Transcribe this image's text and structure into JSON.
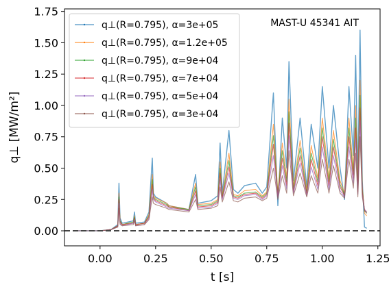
{
  "chart_data": {
    "type": "line",
    "annotation": "MAST-U 45341 AIT",
    "xlabel": "t [s]",
    "ylabel": "q⊥ [MW/m²]",
    "xlim": [
      -0.16,
      1.26
    ],
    "ylim": [
      -0.12,
      1.77
    ],
    "xticks": [
      0.0,
      0.25,
      0.5,
      0.75,
      1.0,
      1.25
    ],
    "xtick_labels": [
      "0.00",
      "0.25",
      "0.50",
      "0.75",
      "1.00",
      "1.25"
    ],
    "yticks": [
      0.0,
      0.25,
      0.5,
      0.75,
      1.0,
      1.25,
      1.5,
      1.75
    ],
    "ytick_labels": [
      "0.00",
      "0.25",
      "0.50",
      "0.75",
      "1.00",
      "1.25",
      "1.50",
      "1.75"
    ],
    "reference_line": {
      "y": 0.0,
      "style": "dashed",
      "color": "#444444"
    },
    "legend_position": "upper-left",
    "grid": false,
    "series": [
      {
        "name": "q⊥(R=0.795), α=3e+05",
        "color": "#1f77b4",
        "x": [
          -0.1,
          0.0,
          0.05,
          0.08,
          0.085,
          0.09,
          0.1,
          0.15,
          0.155,
          0.16,
          0.2,
          0.22,
          0.235,
          0.24,
          0.25,
          0.3,
          0.31,
          0.4,
          0.43,
          0.44,
          0.5,
          0.53,
          0.54,
          0.55,
          0.58,
          0.6,
          0.62,
          0.65,
          0.7,
          0.73,
          0.75,
          0.78,
          0.8,
          0.82,
          0.84,
          0.85,
          0.87,
          0.9,
          0.93,
          0.95,
          0.98,
          1.0,
          1.03,
          1.05,
          1.08,
          1.1,
          1.12,
          1.14,
          1.15,
          1.16,
          1.17,
          1.18,
          1.19,
          1.2
        ],
        "y": [
          0.0,
          0.0,
          0.01,
          0.05,
          0.38,
          0.1,
          0.06,
          0.08,
          0.15,
          0.06,
          0.07,
          0.15,
          0.58,
          0.3,
          0.27,
          0.22,
          0.2,
          0.17,
          0.45,
          0.22,
          0.24,
          0.28,
          0.7,
          0.3,
          0.8,
          0.33,
          0.3,
          0.36,
          0.38,
          0.3,
          0.35,
          1.1,
          0.2,
          0.9,
          0.5,
          1.35,
          0.4,
          0.9,
          0.35,
          0.85,
          0.5,
          1.15,
          0.5,
          1.0,
          0.5,
          0.25,
          1.15,
          0.6,
          1.4,
          0.4,
          1.6,
          0.4,
          0.03,
          0.02
        ]
      },
      {
        "name": "q⊥(R=0.795), α=1.2e+05",
        "color": "#ff7f0e",
        "x": [
          -0.1,
          0.0,
          0.05,
          0.08,
          0.085,
          0.09,
          0.1,
          0.15,
          0.155,
          0.16,
          0.2,
          0.22,
          0.235,
          0.24,
          0.25,
          0.3,
          0.31,
          0.4,
          0.43,
          0.44,
          0.5,
          0.53,
          0.54,
          0.55,
          0.58,
          0.6,
          0.62,
          0.65,
          0.7,
          0.73,
          0.75,
          0.78,
          0.8,
          0.82,
          0.84,
          0.85,
          0.87,
          0.9,
          0.93,
          0.95,
          0.98,
          1.0,
          1.03,
          1.05,
          1.08,
          1.1,
          1.12,
          1.14,
          1.15,
          1.16,
          1.17,
          1.18,
          1.19,
          1.2
        ],
        "y": [
          0.0,
          0.0,
          0.01,
          0.04,
          0.3,
          0.08,
          0.05,
          0.07,
          0.12,
          0.05,
          0.06,
          0.13,
          0.45,
          0.28,
          0.26,
          0.22,
          0.2,
          0.17,
          0.38,
          0.21,
          0.22,
          0.25,
          0.55,
          0.28,
          0.62,
          0.29,
          0.28,
          0.32,
          0.33,
          0.28,
          0.31,
          0.85,
          0.3,
          0.7,
          0.42,
          1.05,
          0.35,
          0.72,
          0.32,
          0.68,
          0.42,
          0.9,
          0.42,
          0.8,
          0.4,
          0.3,
          0.9,
          0.48,
          1.0,
          0.35,
          1.2,
          0.35,
          0.14,
          0.12
        ]
      },
      {
        "name": "q⊥(R=0.795), α=9e+04",
        "color": "#2ca02c",
        "x": [
          -0.1,
          0.0,
          0.05,
          0.08,
          0.085,
          0.09,
          0.1,
          0.15,
          0.155,
          0.16,
          0.2,
          0.22,
          0.235,
          0.24,
          0.25,
          0.3,
          0.31,
          0.4,
          0.43,
          0.44,
          0.5,
          0.53,
          0.54,
          0.55,
          0.58,
          0.6,
          0.62,
          0.65,
          0.7,
          0.73,
          0.75,
          0.78,
          0.8,
          0.82,
          0.84,
          0.85,
          0.87,
          0.9,
          0.93,
          0.95,
          0.98,
          1.0,
          1.03,
          1.05,
          1.08,
          1.1,
          1.12,
          1.14,
          1.15,
          1.16,
          1.17,
          1.18,
          1.19,
          1.2
        ],
        "y": [
          0.0,
          0.0,
          0.01,
          0.04,
          0.27,
          0.08,
          0.05,
          0.07,
          0.11,
          0.05,
          0.06,
          0.12,
          0.41,
          0.27,
          0.25,
          0.21,
          0.19,
          0.17,
          0.35,
          0.2,
          0.21,
          0.24,
          0.5,
          0.27,
          0.56,
          0.28,
          0.27,
          0.3,
          0.31,
          0.27,
          0.3,
          0.76,
          0.29,
          0.64,
          0.39,
          0.95,
          0.33,
          0.66,
          0.3,
          0.62,
          0.39,
          0.82,
          0.39,
          0.73,
          0.37,
          0.29,
          0.82,
          0.45,
          0.9,
          0.33,
          1.08,
          0.33,
          0.16,
          0.14
        ]
      },
      {
        "name": "q⊥(R=0.795), α=7e+04",
        "color": "#d62728",
        "x": [
          -0.1,
          0.0,
          0.05,
          0.08,
          0.085,
          0.09,
          0.1,
          0.15,
          0.155,
          0.16,
          0.2,
          0.22,
          0.235,
          0.24,
          0.25,
          0.3,
          0.31,
          0.4,
          0.43,
          0.44,
          0.5,
          0.53,
          0.54,
          0.55,
          0.58,
          0.6,
          0.62,
          0.65,
          0.7,
          0.73,
          0.75,
          0.78,
          0.8,
          0.82,
          0.84,
          0.85,
          0.87,
          0.9,
          0.93,
          0.95,
          0.98,
          1.0,
          1.03,
          1.05,
          1.08,
          1.1,
          1.12,
          1.14,
          1.15,
          1.16,
          1.17,
          1.18,
          1.19,
          1.2
        ],
        "y": [
          0.0,
          0.0,
          0.01,
          0.04,
          0.25,
          0.07,
          0.05,
          0.06,
          0.1,
          0.05,
          0.06,
          0.11,
          0.37,
          0.26,
          0.24,
          0.2,
          0.19,
          0.16,
          0.32,
          0.19,
          0.2,
          0.23,
          0.46,
          0.26,
          0.51,
          0.27,
          0.26,
          0.29,
          0.3,
          0.26,
          0.29,
          0.69,
          0.28,
          0.58,
          0.36,
          0.86,
          0.31,
          0.6,
          0.29,
          0.57,
          0.36,
          0.75,
          0.36,
          0.67,
          0.35,
          0.28,
          0.75,
          0.42,
          0.82,
          0.31,
          0.98,
          0.31,
          0.17,
          0.15
        ]
      },
      {
        "name": "q⊥(R=0.795), α=5e+04",
        "color": "#9467bd",
        "x": [
          -0.1,
          0.0,
          0.05,
          0.08,
          0.085,
          0.09,
          0.1,
          0.15,
          0.155,
          0.16,
          0.2,
          0.22,
          0.235,
          0.24,
          0.25,
          0.3,
          0.31,
          0.4,
          0.43,
          0.44,
          0.5,
          0.53,
          0.54,
          0.55,
          0.58,
          0.6,
          0.62,
          0.65,
          0.7,
          0.73,
          0.75,
          0.78,
          0.8,
          0.82,
          0.84,
          0.85,
          0.87,
          0.9,
          0.93,
          0.95,
          0.98,
          1.0,
          1.03,
          1.05,
          1.08,
          1.1,
          1.12,
          1.14,
          1.15,
          1.16,
          1.17,
          1.18,
          1.19,
          1.2
        ],
        "y": [
          0.0,
          0.0,
          0.01,
          0.03,
          0.22,
          0.06,
          0.04,
          0.06,
          0.09,
          0.04,
          0.05,
          0.1,
          0.33,
          0.25,
          0.23,
          0.19,
          0.18,
          0.16,
          0.29,
          0.18,
          0.19,
          0.22,
          0.41,
          0.25,
          0.46,
          0.26,
          0.25,
          0.28,
          0.29,
          0.25,
          0.28,
          0.6,
          0.27,
          0.52,
          0.33,
          0.76,
          0.3,
          0.54,
          0.28,
          0.51,
          0.33,
          0.67,
          0.33,
          0.6,
          0.32,
          0.27,
          0.67,
          0.38,
          0.74,
          0.29,
          0.88,
          0.29,
          0.17,
          0.15
        ]
      },
      {
        "name": "q⊥(R=0.795), α=3e+04",
        "color": "#8c564b",
        "x": [
          -0.1,
          0.0,
          0.05,
          0.08,
          0.085,
          0.09,
          0.1,
          0.15,
          0.155,
          0.16,
          0.2,
          0.22,
          0.235,
          0.24,
          0.25,
          0.3,
          0.31,
          0.4,
          0.43,
          0.44,
          0.5,
          0.53,
          0.54,
          0.55,
          0.58,
          0.6,
          0.62,
          0.65,
          0.7,
          0.73,
          0.75,
          0.78,
          0.8,
          0.82,
          0.84,
          0.85,
          0.87,
          0.9,
          0.93,
          0.95,
          0.98,
          1.0,
          1.03,
          1.05,
          1.08,
          1.1,
          1.12,
          1.14,
          1.15,
          1.16,
          1.17,
          1.18,
          1.19,
          1.2
        ],
        "y": [
          0.0,
          0.0,
          0.01,
          0.03,
          0.18,
          0.05,
          0.04,
          0.05,
          0.08,
          0.04,
          0.05,
          0.09,
          0.27,
          0.22,
          0.21,
          0.18,
          0.17,
          0.15,
          0.25,
          0.17,
          0.18,
          0.2,
          0.35,
          0.23,
          0.39,
          0.24,
          0.23,
          0.26,
          0.27,
          0.24,
          0.26,
          0.5,
          0.25,
          0.44,
          0.3,
          0.64,
          0.28,
          0.46,
          0.27,
          0.44,
          0.3,
          0.57,
          0.3,
          0.52,
          0.3,
          0.26,
          0.57,
          0.34,
          0.62,
          0.27,
          0.75,
          0.27,
          0.16,
          0.14
        ]
      }
    ]
  }
}
